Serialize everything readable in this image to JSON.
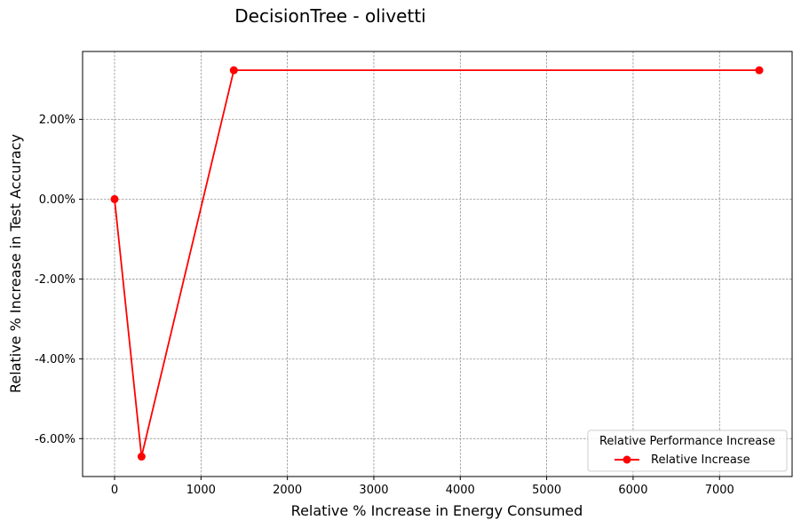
{
  "chart_data": {
    "type": "line",
    "title": "DecisionTree - olivetti",
    "xlabel": "Relative % Increase in Energy Consumed",
    "ylabel": "Relative % Increase in Test Accuracy",
    "xlim": [
      -370,
      7840
    ],
    "ylim": [
      -6.95,
      3.7
    ],
    "x_ticks": [
      0,
      1000,
      2000,
      3000,
      4000,
      5000,
      6000,
      7000
    ],
    "x_tick_labels": [
      "0",
      "1000",
      "2000",
      "3000",
      "4000",
      "5000",
      "6000",
      "7000"
    ],
    "y_ticks": [
      -6,
      -4,
      -2,
      0,
      2
    ],
    "y_tick_labels": [
      "-6.00%",
      "-4.00%",
      "-2.00%",
      "0.00%",
      "2.00%"
    ],
    "grid": true,
    "legend": {
      "title": "Relative Performance Increase",
      "placement": "lower-right"
    },
    "series": [
      {
        "name": "Relative Increase",
        "color": "#ff0000",
        "marker": "circle",
        "x": [
          0,
          312,
          1380,
          7460
        ],
        "y": [
          0.0,
          -6.45,
          3.23,
          3.23
        ]
      }
    ]
  }
}
